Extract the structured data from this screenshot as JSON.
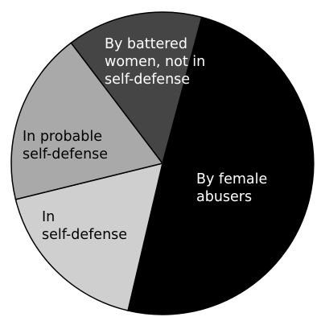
{
  "chart_data": {
    "type": "pie",
    "slices": [
      {
        "label": "By female abusers",
        "label_lines": [
          "By female",
          "abusers"
        ],
        "value": 49.5,
        "color": "#000000",
        "label_color": "#ffffff"
      },
      {
        "label": "In self-defense",
        "label_lines": [
          "In",
          "self-defense"
        ],
        "value": 17.5,
        "color": "#cfcfcf",
        "label_color": "#000000"
      },
      {
        "label": "In probable self-defense",
        "label_lines": [
          "In probable",
          "self-defense"
        ],
        "value": 18.5,
        "color": "#a9a9a9",
        "label_color": "#000000"
      },
      {
        "label": "By battered women, not in self-defense",
        "label_lines": [
          "By battered",
          "women, not in",
          "self-defense"
        ],
        "value": 14.5,
        "color": "#454545",
        "label_color": "#ffffff"
      }
    ],
    "start_angle_deg": 15,
    "direction": "clockwise",
    "outline_color": "#000000"
  }
}
